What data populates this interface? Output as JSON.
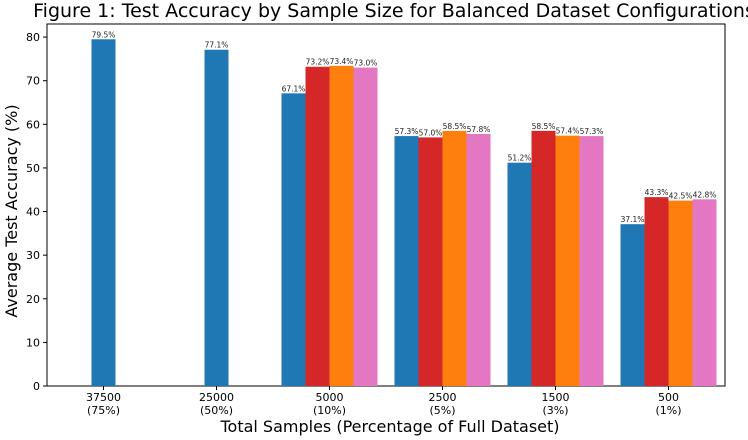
{
  "chart_data": {
    "type": "bar",
    "title": "Figure 1: Test Accuracy by Sample Size for Balanced Dataset Configurations",
    "xlabel": "Total Samples (Percentage of Full Dataset)",
    "ylabel": "Average Test Accuracy (%)",
    "ylim": [
      0,
      83
    ],
    "yticks": [
      "0",
      "10",
      "20",
      "30",
      "40",
      "50",
      "60",
      "70",
      "80"
    ],
    "grid": false,
    "legend": "none",
    "groups": [
      {
        "line1": "37500",
        "line2": "(75%)",
        "values": [
          79.5
        ],
        "labels": [
          "79.5%"
        ]
      },
      {
        "line1": "25000",
        "line2": "(50%)",
        "values": [
          77.1
        ],
        "labels": [
          "77.1%"
        ]
      },
      {
        "line1": "5000",
        "line2": "(10%)",
        "values": [
          67.1,
          73.2,
          73.4,
          73.0
        ],
        "labels": [
          "67.1%",
          "73.2%",
          "73.4%",
          "73.0%"
        ]
      },
      {
        "line1": "2500",
        "line2": "(5%)",
        "values": [
          57.3,
          57.0,
          58.5,
          57.8
        ],
        "labels": [
          "57.3%",
          "57.0%",
          "58.5%",
          "57.8%"
        ]
      },
      {
        "line1": "1500",
        "line2": "(3%)",
        "values": [
          51.2,
          58.5,
          57.4,
          57.3
        ],
        "labels": [
          "51.2%",
          "58.5%",
          "57.4%",
          "57.3%"
        ]
      },
      {
        "line1": "500",
        "line2": "(1%)",
        "values": [
          37.1,
          43.3,
          42.5,
          42.8
        ],
        "labels": [
          "37.1%",
          "43.3%",
          "42.5%",
          "42.8%"
        ]
      }
    ],
    "series_colors": [
      "#1f77b4",
      "#d62728",
      "#ff7f0e",
      "#e377c2"
    ]
  }
}
